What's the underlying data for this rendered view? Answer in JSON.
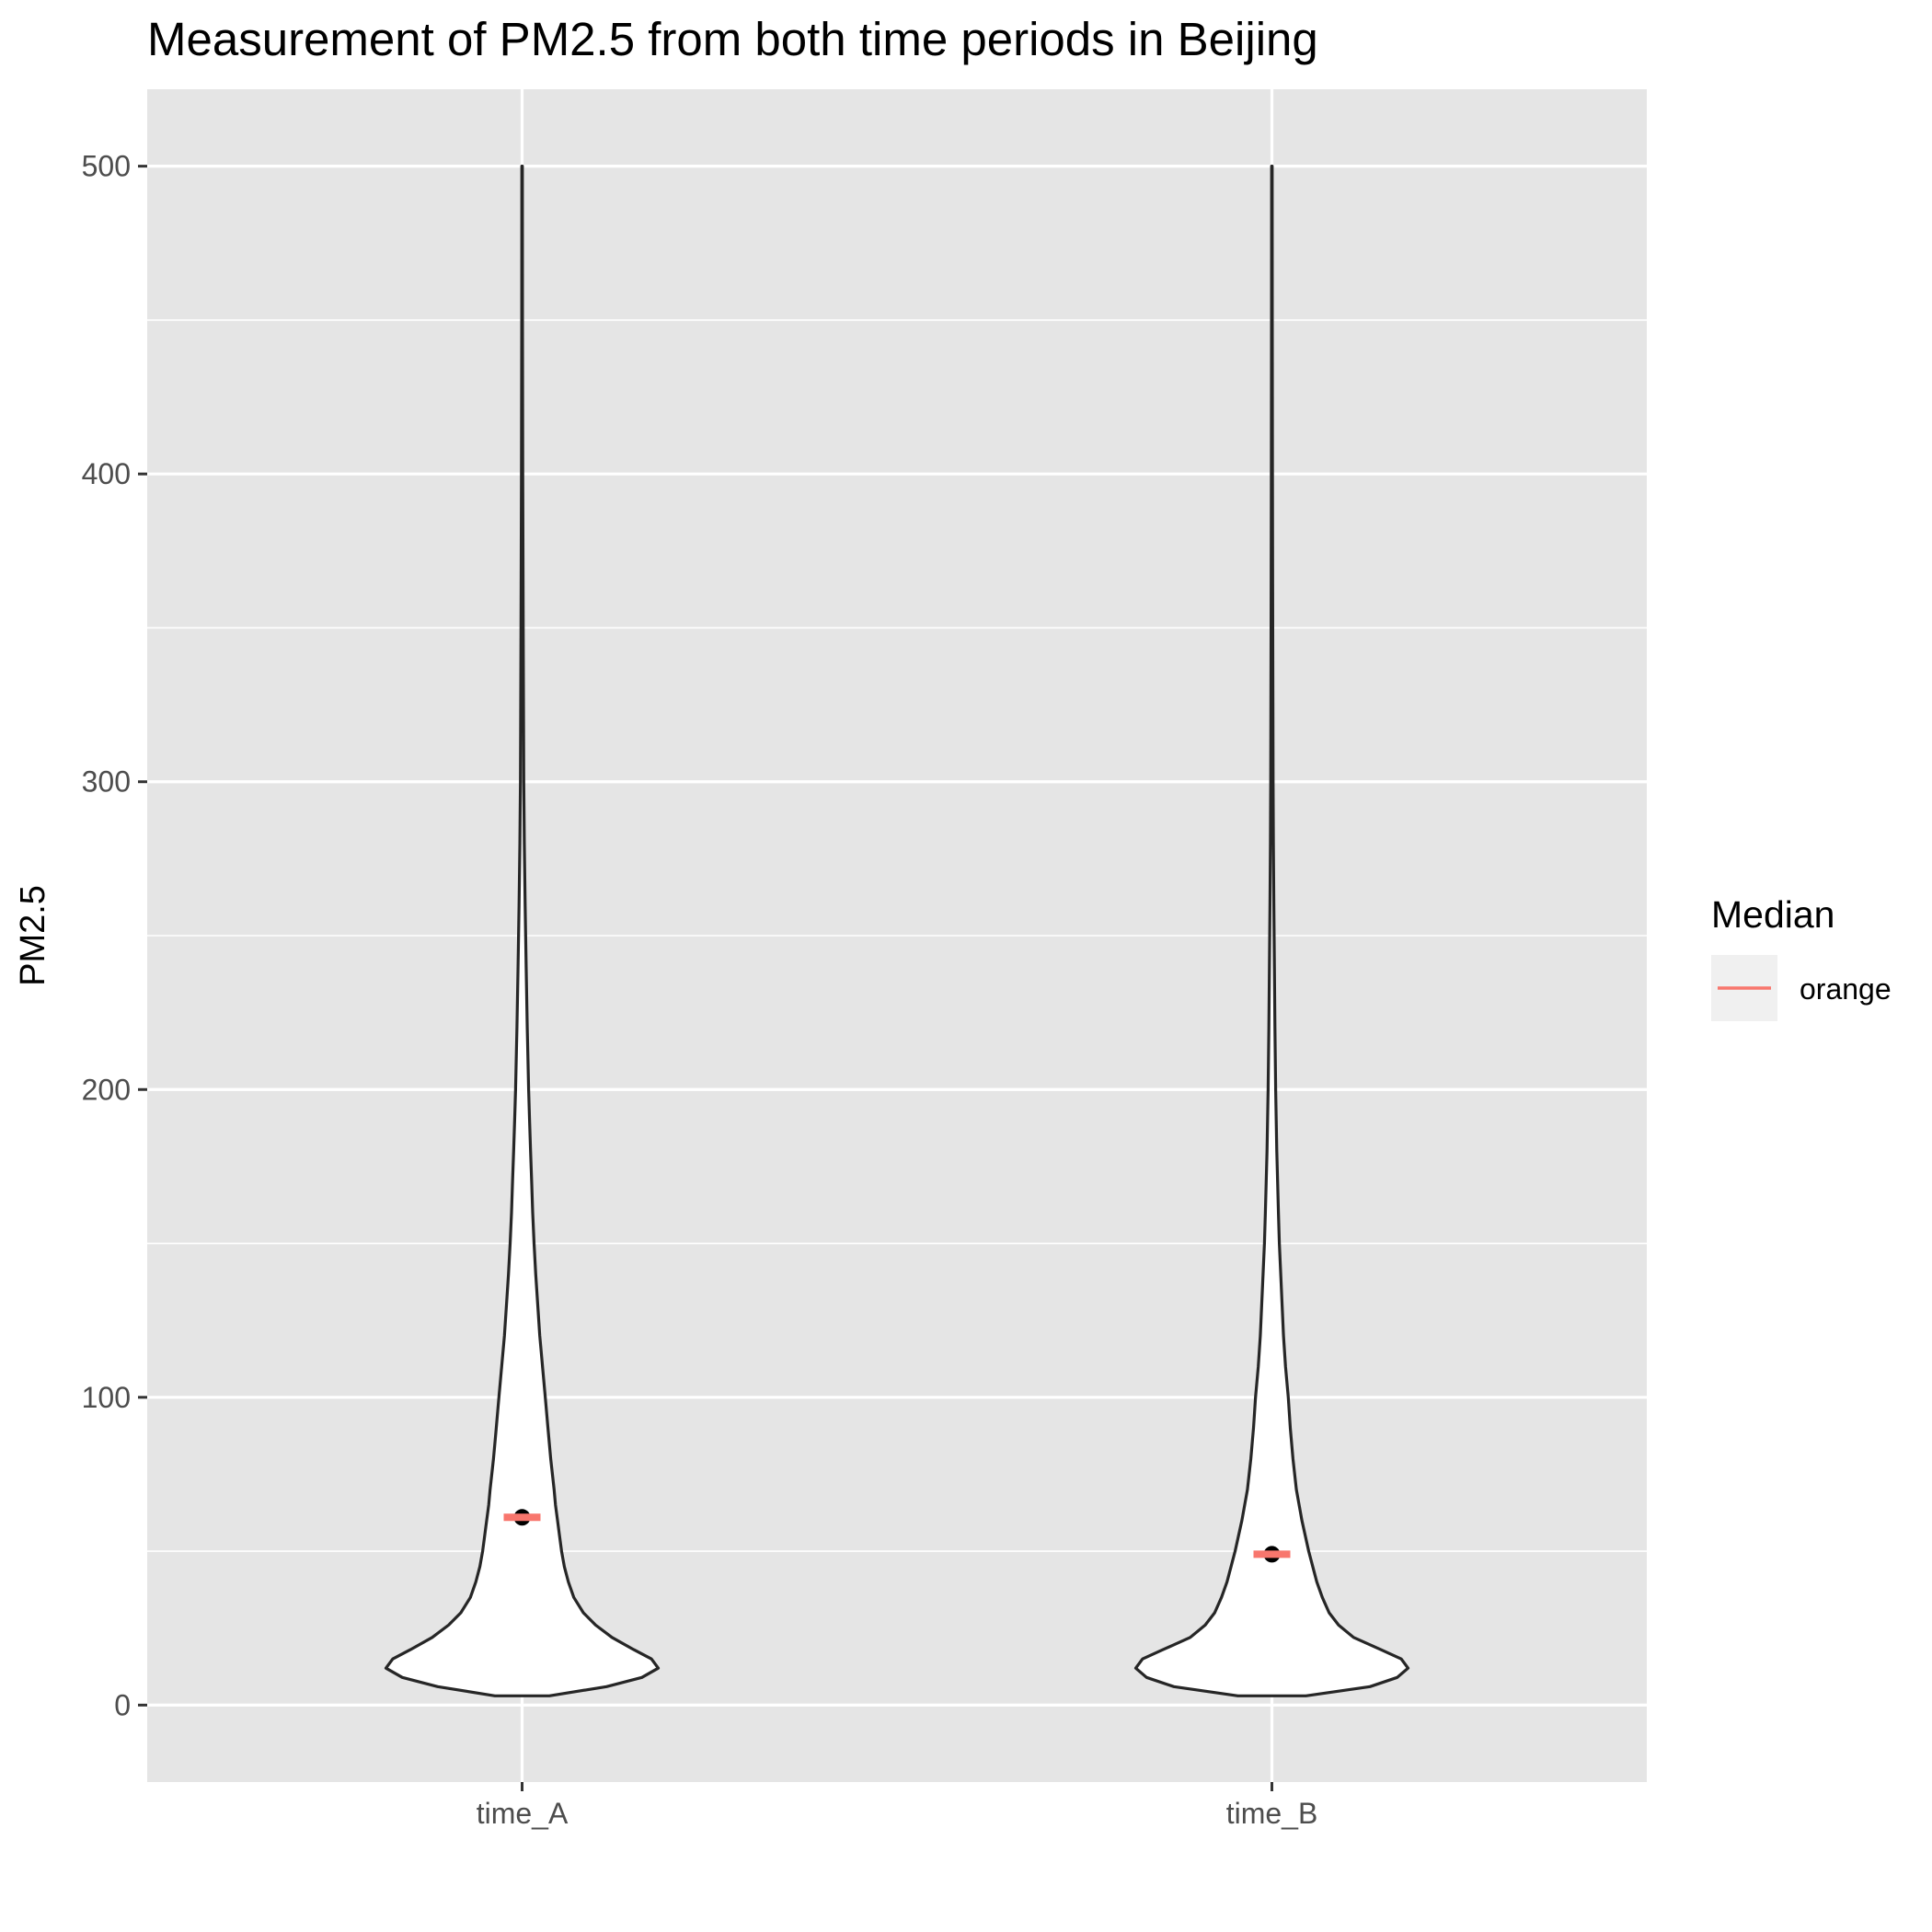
{
  "chart_data": {
    "type": "violin",
    "title": "Measurement of PM2.5 from both time periods in Beijing",
    "xlabel": "",
    "ylabel": "PM2.5",
    "categories": [
      "time_A",
      "time_B"
    ],
    "ylim": [
      -25,
      525
    ],
    "yticks": [
      0,
      100,
      200,
      300,
      400,
      500
    ],
    "grid": true,
    "medians": [
      61,
      49
    ],
    "legend": {
      "title": "Median",
      "position": "right",
      "entries": [
        {
          "label": "orange",
          "color": "#F8766D"
        }
      ]
    },
    "density": [
      {
        "name": "time_A",
        "profile": [
          [
            3,
            0.2
          ],
          [
            6,
            0.62
          ],
          [
            9,
            0.88
          ],
          [
            12,
            1.0
          ],
          [
            15,
            0.95
          ],
          [
            18,
            0.82
          ],
          [
            22,
            0.66
          ],
          [
            26,
            0.54
          ],
          [
            30,
            0.45
          ],
          [
            35,
            0.38
          ],
          [
            40,
            0.34
          ],
          [
            45,
            0.31
          ],
          [
            50,
            0.29
          ],
          [
            55,
            0.275
          ],
          [
            60,
            0.26
          ],
          [
            65,
            0.245
          ],
          [
            70,
            0.235
          ],
          [
            80,
            0.21
          ],
          [
            90,
            0.19
          ],
          [
            100,
            0.17
          ],
          [
            110,
            0.15
          ],
          [
            120,
            0.13
          ],
          [
            130,
            0.115
          ],
          [
            140,
            0.1
          ],
          [
            150,
            0.088
          ],
          [
            160,
            0.078
          ],
          [
            170,
            0.07
          ],
          [
            180,
            0.062
          ],
          [
            190,
            0.055
          ],
          [
            200,
            0.048
          ],
          [
            220,
            0.038
          ],
          [
            240,
            0.03
          ],
          [
            260,
            0.022
          ],
          [
            280,
            0.016
          ],
          [
            300,
            0.012
          ],
          [
            350,
            0.008
          ],
          [
            400,
            0.005
          ],
          [
            450,
            0.003
          ],
          [
            500,
            0.002
          ]
        ]
      },
      {
        "name": "time_B",
        "profile": [
          [
            3,
            0.25
          ],
          [
            6,
            0.72
          ],
          [
            9,
            0.92
          ],
          [
            12,
            1.0
          ],
          [
            15,
            0.95
          ],
          [
            18,
            0.8
          ],
          [
            22,
            0.6
          ],
          [
            26,
            0.49
          ],
          [
            30,
            0.42
          ],
          [
            35,
            0.37
          ],
          [
            40,
            0.33
          ],
          [
            45,
            0.3
          ],
          [
            50,
            0.27
          ],
          [
            55,
            0.245
          ],
          [
            60,
            0.22
          ],
          [
            65,
            0.2
          ],
          [
            70,
            0.18
          ],
          [
            80,
            0.155
          ],
          [
            90,
            0.135
          ],
          [
            100,
            0.12
          ],
          [
            110,
            0.1
          ],
          [
            120,
            0.085
          ],
          [
            130,
            0.075
          ],
          [
            140,
            0.065
          ],
          [
            150,
            0.055
          ],
          [
            160,
            0.048
          ],
          [
            170,
            0.042
          ],
          [
            180,
            0.036
          ],
          [
            190,
            0.032
          ],
          [
            200,
            0.028
          ],
          [
            220,
            0.022
          ],
          [
            240,
            0.018
          ],
          [
            260,
            0.014
          ],
          [
            280,
            0.011
          ],
          [
            300,
            0.009
          ],
          [
            350,
            0.006
          ],
          [
            400,
            0.004
          ],
          [
            450,
            0.003
          ],
          [
            500,
            0.002
          ]
        ]
      }
    ]
  },
  "colors": {
    "panel_bg": "#E5E5E5",
    "grid": "#FFFFFF",
    "violin_fill": "#FFFFFF",
    "violin_stroke": "#262626",
    "median": "#F8766D",
    "point": "#000000",
    "legend_key_bg": "#F0F0F0"
  }
}
